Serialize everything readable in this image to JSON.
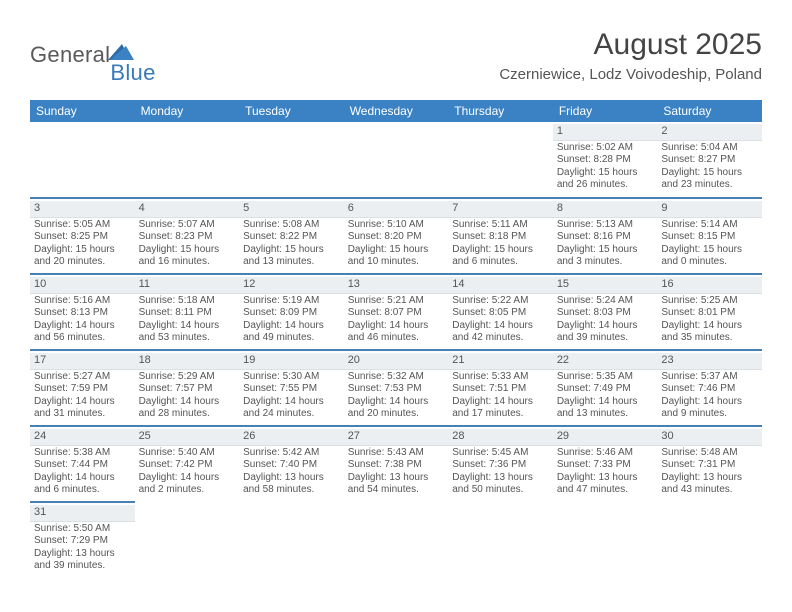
{
  "logo": {
    "text1": "General",
    "text2": "Blue"
  },
  "title": "August 2025",
  "location": "Czerniewice, Lodz Voivodeship, Poland",
  "colors": {
    "header_bg": "#3a82c4",
    "row_divider": "#4a7fb5",
    "daynum_bg": "#eceff2",
    "logo_blue": "#3a7ab8",
    "text_gray": "#555555"
  },
  "day_headers": [
    "Sunday",
    "Monday",
    "Tuesday",
    "Wednesday",
    "Thursday",
    "Friday",
    "Saturday"
  ],
  "weeks": [
    [
      null,
      null,
      null,
      null,
      null,
      {
        "n": "1",
        "sr": "5:02 AM",
        "ss": "8:28 PM",
        "dl": "15 hours and 26 minutes."
      },
      {
        "n": "2",
        "sr": "5:04 AM",
        "ss": "8:27 PM",
        "dl": "15 hours and 23 minutes."
      }
    ],
    [
      {
        "n": "3",
        "sr": "5:05 AM",
        "ss": "8:25 PM",
        "dl": "15 hours and 20 minutes."
      },
      {
        "n": "4",
        "sr": "5:07 AM",
        "ss": "8:23 PM",
        "dl": "15 hours and 16 minutes."
      },
      {
        "n": "5",
        "sr": "5:08 AM",
        "ss": "8:22 PM",
        "dl": "15 hours and 13 minutes."
      },
      {
        "n": "6",
        "sr": "5:10 AM",
        "ss": "8:20 PM",
        "dl": "15 hours and 10 minutes."
      },
      {
        "n": "7",
        "sr": "5:11 AM",
        "ss": "8:18 PM",
        "dl": "15 hours and 6 minutes."
      },
      {
        "n": "8",
        "sr": "5:13 AM",
        "ss": "8:16 PM",
        "dl": "15 hours and 3 minutes."
      },
      {
        "n": "9",
        "sr": "5:14 AM",
        "ss": "8:15 PM",
        "dl": "15 hours and 0 minutes."
      }
    ],
    [
      {
        "n": "10",
        "sr": "5:16 AM",
        "ss": "8:13 PM",
        "dl": "14 hours and 56 minutes."
      },
      {
        "n": "11",
        "sr": "5:18 AM",
        "ss": "8:11 PM",
        "dl": "14 hours and 53 minutes."
      },
      {
        "n": "12",
        "sr": "5:19 AM",
        "ss": "8:09 PM",
        "dl": "14 hours and 49 minutes."
      },
      {
        "n": "13",
        "sr": "5:21 AM",
        "ss": "8:07 PM",
        "dl": "14 hours and 46 minutes."
      },
      {
        "n": "14",
        "sr": "5:22 AM",
        "ss": "8:05 PM",
        "dl": "14 hours and 42 minutes."
      },
      {
        "n": "15",
        "sr": "5:24 AM",
        "ss": "8:03 PM",
        "dl": "14 hours and 39 minutes."
      },
      {
        "n": "16",
        "sr": "5:25 AM",
        "ss": "8:01 PM",
        "dl": "14 hours and 35 minutes."
      }
    ],
    [
      {
        "n": "17",
        "sr": "5:27 AM",
        "ss": "7:59 PM",
        "dl": "14 hours and 31 minutes."
      },
      {
        "n": "18",
        "sr": "5:29 AM",
        "ss": "7:57 PM",
        "dl": "14 hours and 28 minutes."
      },
      {
        "n": "19",
        "sr": "5:30 AM",
        "ss": "7:55 PM",
        "dl": "14 hours and 24 minutes."
      },
      {
        "n": "20",
        "sr": "5:32 AM",
        "ss": "7:53 PM",
        "dl": "14 hours and 20 minutes."
      },
      {
        "n": "21",
        "sr": "5:33 AM",
        "ss": "7:51 PM",
        "dl": "14 hours and 17 minutes."
      },
      {
        "n": "22",
        "sr": "5:35 AM",
        "ss": "7:49 PM",
        "dl": "14 hours and 13 minutes."
      },
      {
        "n": "23",
        "sr": "5:37 AM",
        "ss": "7:46 PM",
        "dl": "14 hours and 9 minutes."
      }
    ],
    [
      {
        "n": "24",
        "sr": "5:38 AM",
        "ss": "7:44 PM",
        "dl": "14 hours and 6 minutes."
      },
      {
        "n": "25",
        "sr": "5:40 AM",
        "ss": "7:42 PM",
        "dl": "14 hours and 2 minutes."
      },
      {
        "n": "26",
        "sr": "5:42 AM",
        "ss": "7:40 PM",
        "dl": "13 hours and 58 minutes."
      },
      {
        "n": "27",
        "sr": "5:43 AM",
        "ss": "7:38 PM",
        "dl": "13 hours and 54 minutes."
      },
      {
        "n": "28",
        "sr": "5:45 AM",
        "ss": "7:36 PM",
        "dl": "13 hours and 50 minutes."
      },
      {
        "n": "29",
        "sr": "5:46 AM",
        "ss": "7:33 PM",
        "dl": "13 hours and 47 minutes."
      },
      {
        "n": "30",
        "sr": "5:48 AM",
        "ss": "7:31 PM",
        "dl": "13 hours and 43 minutes."
      }
    ],
    [
      {
        "n": "31",
        "sr": "5:50 AM",
        "ss": "7:29 PM",
        "dl": "13 hours and 39 minutes."
      },
      null,
      null,
      null,
      null,
      null,
      null
    ]
  ],
  "labels": {
    "sunrise": "Sunrise: ",
    "sunset": "Sunset: ",
    "daylight": "Daylight: "
  }
}
